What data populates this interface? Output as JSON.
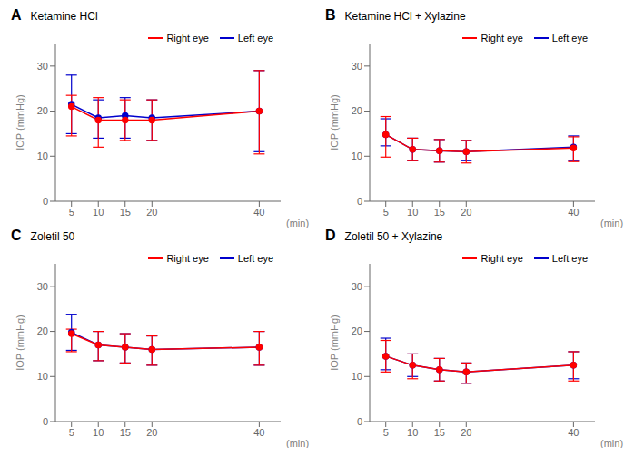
{
  "chart_data": [
    {
      "type": "line",
      "title": "Ketamine HCl",
      "annotations": [
        "A"
      ],
      "xlabel": "(min)",
      "ylabel": "IOP (mmHg)",
      "x": [
        5,
        10,
        15,
        20,
        40
      ],
      "xlim": [
        2,
        44
      ],
      "xticks": [
        5,
        10,
        15,
        20,
        40
      ],
      "ylim": [
        0,
        35
      ],
      "yticks": [
        0,
        10,
        20,
        30
      ],
      "grid": false,
      "legend": "upper right",
      "series": [
        {
          "name": "Right eye",
          "color": "#FF0000",
          "marker": "circle",
          "values": [
            21.0,
            18.0,
            18.0,
            18.0,
            20.0
          ],
          "err_lo": [
            6.5,
            6.0,
            4.5,
            4.5,
            9.5
          ],
          "err_hi": [
            2.5,
            5.0,
            4.5,
            4.5,
            9.0
          ]
        },
        {
          "name": "Left eye",
          "color": "#0000CC",
          "marker": "circle",
          "values": [
            21.5,
            18.5,
            19.0,
            18.5,
            20.0
          ],
          "err_lo": [
            6.5,
            4.5,
            5.0,
            5.0,
            9.0
          ],
          "err_hi": [
            6.5,
            4.0,
            4.0,
            4.0,
            9.0
          ]
        }
      ]
    },
    {
      "type": "line",
      "title": "Ketamine HCl + Xylazine",
      "annotations": [
        "B"
      ],
      "xlabel": "(min)",
      "ylabel": "IOP (mmHg)",
      "x": [
        5,
        10,
        15,
        20,
        40
      ],
      "xlim": [
        2,
        44
      ],
      "xticks": [
        5,
        10,
        15,
        20,
        40
      ],
      "ylim": [
        0,
        35
      ],
      "yticks": [
        0,
        10,
        20,
        30
      ],
      "grid": false,
      "legend": "upper right",
      "series": [
        {
          "name": "Right eye",
          "color": "#FF0000",
          "marker": "circle",
          "values": [
            14.8,
            11.5,
            11.2,
            11.0,
            11.8
          ],
          "err_lo": [
            5.0,
            2.5,
            2.5,
            2.5,
            3.0
          ],
          "err_hi": [
            4.0,
            2.5,
            2.5,
            2.5,
            2.5
          ]
        },
        {
          "name": "Left eye",
          "color": "#0000CC",
          "marker": "circle",
          "values": [
            14.8,
            11.5,
            11.2,
            11.0,
            12.0
          ],
          "err_lo": [
            2.5,
            2.5,
            2.5,
            2.0,
            3.0
          ],
          "err_hi": [
            3.5,
            2.5,
            2.5,
            2.5,
            2.5
          ]
        }
      ]
    },
    {
      "type": "line",
      "title": "Zoletil 50",
      "annotations": [
        "C"
      ],
      "xlabel": "(min)",
      "ylabel": "IOP (mmHg)",
      "x": [
        5,
        10,
        15,
        20,
        40
      ],
      "xlim": [
        2,
        44
      ],
      "xticks": [
        5,
        10,
        15,
        20,
        40
      ],
      "ylim": [
        0,
        35
      ],
      "yticks": [
        0,
        10,
        20,
        30
      ],
      "grid": false,
      "legend": "upper right",
      "series": [
        {
          "name": "Right eye",
          "color": "#FF0000",
          "marker": "circle",
          "values": [
            19.5,
            17.0,
            16.5,
            16.0,
            16.5
          ],
          "err_lo": [
            4.0,
            3.5,
            3.5,
            3.5,
            4.0
          ],
          "err_hi": [
            1.0,
            3.0,
            3.0,
            3.0,
            3.5
          ]
        },
        {
          "name": "Left eye",
          "color": "#0000CC",
          "marker": "circle",
          "values": [
            19.8,
            17.0,
            16.5,
            16.0,
            16.5
          ],
          "err_lo": [
            4.0,
            3.5,
            3.5,
            3.5,
            4.0
          ],
          "err_hi": [
            4.0,
            3.0,
            3.0,
            3.0,
            3.5
          ]
        }
      ]
    },
    {
      "type": "line",
      "title": "Zoletil 50 + Xylazine",
      "annotations": [
        "D"
      ],
      "xlabel": "(min)",
      "ylabel": "IOP (mmHg)",
      "x": [
        5,
        10,
        15,
        20,
        40
      ],
      "xlim": [
        2,
        44
      ],
      "xticks": [
        5,
        10,
        15,
        20,
        40
      ],
      "ylim": [
        0,
        35
      ],
      "yticks": [
        0,
        10,
        20,
        30
      ],
      "grid": false,
      "legend": "upper right",
      "series": [
        {
          "name": "Right eye",
          "color": "#FF0000",
          "marker": "circle",
          "values": [
            14.5,
            12.5,
            11.5,
            11.0,
            12.5
          ],
          "err_lo": [
            3.5,
            3.0,
            2.5,
            2.5,
            3.5
          ],
          "err_hi": [
            3.5,
            2.5,
            2.5,
            2.0,
            3.0
          ]
        },
        {
          "name": "Left eye",
          "color": "#0000CC",
          "marker": "circle",
          "values": [
            14.5,
            12.5,
            11.5,
            11.0,
            12.5
          ],
          "err_lo": [
            3.0,
            2.5,
            2.5,
            2.5,
            3.0
          ],
          "err_hi": [
            4.0,
            2.5,
            2.5,
            2.0,
            3.0
          ]
        }
      ]
    }
  ]
}
